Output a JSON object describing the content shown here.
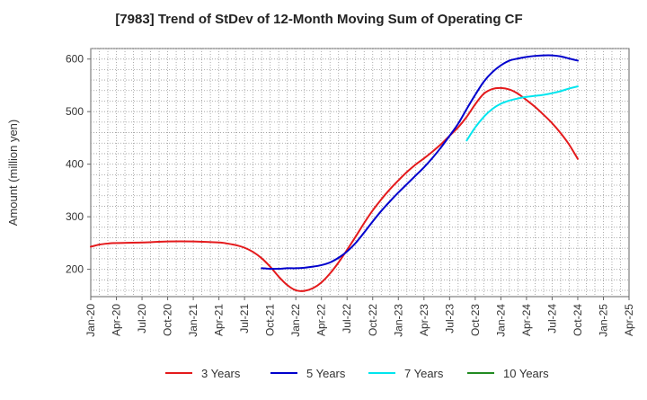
{
  "chart_data": {
    "type": "line",
    "title": "[7983]  Trend of StDev of 12-Month Moving Sum of Operating CF",
    "xlabel": "",
    "ylabel": "Amount (million yen)",
    "ylim": [
      148,
      620
    ],
    "yticks": [
      200,
      300,
      400,
      500,
      600
    ],
    "x_ticks": [
      "Jan-20",
      "Apr-20",
      "Jul-20",
      "Oct-20",
      "Jan-21",
      "Apr-21",
      "Jul-21",
      "Oct-21",
      "Jan-22",
      "Apr-22",
      "Jul-22",
      "Oct-22",
      "Jan-23",
      "Apr-23",
      "Jul-23",
      "Oct-23",
      "Jan-24",
      "Apr-24",
      "Jul-24",
      "Oct-24",
      "Jan-25",
      "Apr-25"
    ],
    "grid": true,
    "legend_position": "bottom",
    "series": [
      {
        "name": "3 Years",
        "color": "#e41a1c",
        "x": [
          "Jan-20",
          "Feb-20",
          "Mar-20",
          "Apr-20",
          "Jul-20",
          "Oct-20",
          "Jan-21",
          "Apr-21",
          "May-21",
          "Jun-21",
          "Jul-21",
          "Aug-21",
          "Sep-21",
          "Oct-21",
          "Nov-21",
          "Dec-21",
          "Jan-22",
          "Feb-22",
          "Mar-22",
          "Apr-22",
          "May-22",
          "Jun-22",
          "Jul-22",
          "Aug-22",
          "Sep-22",
          "Oct-22",
          "Nov-22",
          "Dec-22",
          "Jan-23",
          "Feb-23",
          "Mar-23",
          "Apr-23",
          "May-23",
          "Jun-23",
          "Jul-23",
          "Aug-23",
          "Sep-23",
          "Oct-23",
          "Nov-23",
          "Dec-23",
          "Jan-24",
          "Feb-24",
          "Mar-24",
          "Apr-24",
          "May-24",
          "Jun-24",
          "Jul-24",
          "Aug-24",
          "Sep-24",
          "Oct-24"
        ],
        "values": [
          243,
          247,
          249,
          250,
          251,
          253,
          253,
          251,
          249,
          246,
          241,
          233,
          221,
          205,
          186,
          170,
          160,
          159,
          164,
          175,
          192,
          213,
          237,
          262,
          288,
          312,
          333,
          352,
          369,
          385,
          399,
          411,
          424,
          438,
          454,
          470,
          490,
          514,
          534,
          543,
          545,
          542,
          534,
          522,
          509,
          494,
          478,
          459,
          437,
          410
        ]
      },
      {
        "name": "5 Years",
        "color": "#0000cd",
        "x": [
          "Sep-21",
          "Oct-21",
          "Nov-21",
          "Dec-21",
          "Jan-22",
          "Feb-22",
          "Mar-22",
          "Apr-22",
          "May-22",
          "Jun-22",
          "Jul-22",
          "Aug-22",
          "Sep-22",
          "Oct-22",
          "Nov-22",
          "Dec-22",
          "Jan-23",
          "Feb-23",
          "Mar-23",
          "Apr-23",
          "May-23",
          "Jun-23",
          "Jul-23",
          "Aug-23",
          "Sep-23",
          "Oct-23",
          "Nov-23",
          "Dec-23",
          "Jan-24",
          "Feb-24",
          "Mar-24",
          "Apr-24",
          "May-24",
          "Jun-24",
          "Jul-24",
          "Aug-24",
          "Sep-24",
          "Oct-24"
        ],
        "values": [
          202,
          201,
          201,
          202,
          202,
          203,
          205,
          208,
          213,
          222,
          234,
          250,
          270,
          291,
          311,
          329,
          346,
          362,
          378,
          394,
          412,
          432,
          454,
          477,
          505,
          532,
          557,
          575,
          588,
          597,
          601,
          604,
          606,
          607,
          607,
          605,
          601,
          597
        ]
      },
      {
        "name": "7 Years",
        "color": "#00e5ee",
        "x": [
          "Sep-23",
          "Oct-23",
          "Nov-23",
          "Dec-23",
          "Jan-24",
          "Feb-24",
          "Mar-24",
          "Apr-24",
          "May-24",
          "Jun-24",
          "Jul-24",
          "Aug-24",
          "Sep-24",
          "Oct-24"
        ],
        "values": [
          445,
          470,
          490,
          505,
          515,
          521,
          525,
          528,
          530,
          532,
          535,
          539,
          544,
          548
        ]
      },
      {
        "name": "10 Years",
        "color": "#228b22",
        "x": [],
        "values": []
      }
    ]
  }
}
